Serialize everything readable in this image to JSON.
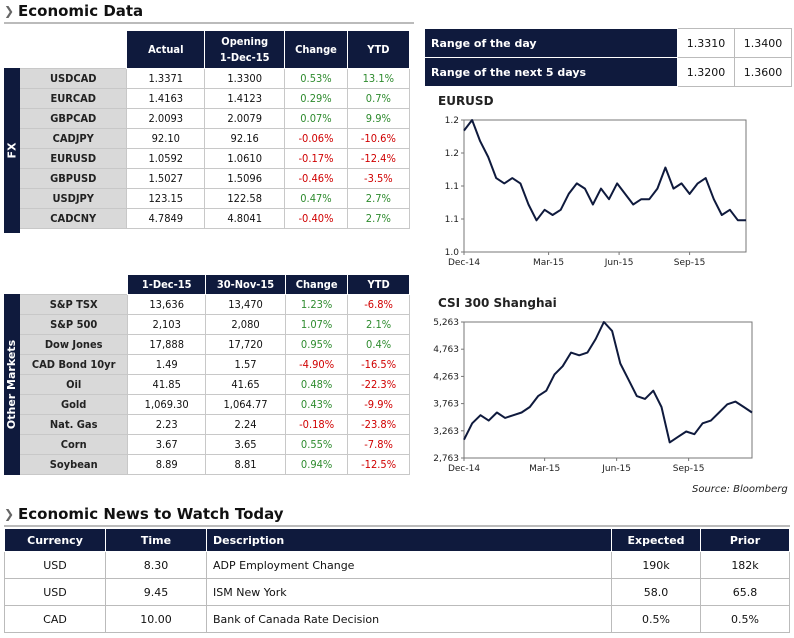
{
  "header": {
    "title": "Economic Data"
  },
  "fx": {
    "side_label": "FX",
    "columns": [
      "Actual",
      "Opening\n1-Dec-15",
      "Change",
      "YTD"
    ],
    "col_actual": "Actual",
    "col_opening": "Opening",
    "col_opening_date": "1-Dec-15",
    "col_change": "Change",
    "col_ytd": "YTD",
    "rows": [
      {
        "name": "USDCAD",
        "actual": "1.3371",
        "opening": "1.3300",
        "change": "0.53%",
        "ytd": "13.1%"
      },
      {
        "name": "EURCAD",
        "actual": "1.4163",
        "opening": "1.4123",
        "change": "0.29%",
        "ytd": "0.7%"
      },
      {
        "name": "GBPCAD",
        "actual": "2.0093",
        "opening": "2.0079",
        "change": "0.07%",
        "ytd": "9.9%"
      },
      {
        "name": "CADJPY",
        "actual": "92.10",
        "opening": "92.16",
        "change": "-0.06%",
        "ytd": "-10.6%"
      },
      {
        "name": "EURUSD",
        "actual": "1.0592",
        "opening": "1.0610",
        "change": "-0.17%",
        "ytd": "-12.4%"
      },
      {
        "name": "GBPUSD",
        "actual": "1.5027",
        "opening": "1.5096",
        "change": "-0.46%",
        "ytd": "-3.5%"
      },
      {
        "name": "USDJPY",
        "actual": "123.15",
        "opening": "122.58",
        "change": "0.47%",
        "ytd": "2.7%"
      },
      {
        "name": "CADCNY",
        "actual": "4.7849",
        "opening": "4.8041",
        "change": "-0.40%",
        "ytd": "2.7%"
      }
    ]
  },
  "range": {
    "rows": [
      {
        "label": "Range of the day",
        "low": "1.3310",
        "high": "1.3400"
      },
      {
        "label": "Range of the next 5 days",
        "low": "1.3200",
        "high": "1.3600"
      }
    ]
  },
  "markets": {
    "side_label": "Other Markets",
    "col_1": "1-Dec-15",
    "col_2": "30-Nov-15",
    "col_change": "Change",
    "col_ytd": "YTD",
    "rows": [
      {
        "name": "S&P TSX",
        "v1": "13,636",
        "v2": "13,470",
        "change": "1.23%",
        "ytd": "-6.8%"
      },
      {
        "name": "S&P 500",
        "v1": "2,103",
        "v2": "2,080",
        "change": "1.07%",
        "ytd": "2.1%"
      },
      {
        "name": "Dow Jones",
        "v1": "17,888",
        "v2": "17,720",
        "change": "0.95%",
        "ytd": "0.4%"
      },
      {
        "name": "CAD Bond 10yr",
        "v1": "1.49",
        "v2": "1.57",
        "change": "-4.90%",
        "ytd": "-16.5%"
      },
      {
        "name": "Oil",
        "v1": "41.85",
        "v2": "41.65",
        "change": "0.48%",
        "ytd": "-22.3%"
      },
      {
        "name": "Gold",
        "v1": "1,069.30",
        "v2": "1,064.77",
        "change": "0.43%",
        "ytd": "-9.9%"
      },
      {
        "name": "Nat. Gas",
        "v1": "2.23",
        "v2": "2.24",
        "change": "-0.18%",
        "ytd": "-23.8%"
      },
      {
        "name": "Corn",
        "v1": "3.67",
        "v2": "3.65",
        "change": "0.55%",
        "ytd": "-7.8%"
      },
      {
        "name": "Soybean",
        "v1": "8.89",
        "v2": "8.81",
        "change": "0.94%",
        "ytd": "-12.5%"
      }
    ]
  },
  "chart_data": [
    {
      "type": "line",
      "title": "EURUSD",
      "xlabel": "",
      "ylabel": "",
      "x_ticks": [
        "Dec-14",
        "Mar-15",
        "Jun-15",
        "Sep-15"
      ],
      "y_ticks": [
        "1.2",
        "1.2",
        "1.1",
        "1.1",
        "1.0"
      ],
      "ylim": [
        1.0,
        1.25
      ],
      "x": [
        "Dec-14",
        "Dec-14",
        "Jan-15",
        "Jan-15",
        "Jan-15",
        "Feb-15",
        "Feb-15",
        "Feb-15",
        "Mar-15",
        "Mar-15",
        "Mar-15",
        "Apr-15",
        "Apr-15",
        "Apr-15",
        "May-15",
        "May-15",
        "May-15",
        "Jun-15",
        "Jun-15",
        "Jun-15",
        "Jul-15",
        "Jul-15",
        "Jul-15",
        "Aug-15",
        "Aug-15",
        "Aug-15",
        "Sep-15",
        "Sep-15",
        "Sep-15",
        "Oct-15",
        "Oct-15",
        "Oct-15",
        "Nov-15",
        "Nov-15",
        "Nov-15",
        "Dec-15"
      ],
      "values": [
        1.23,
        1.25,
        1.21,
        1.18,
        1.14,
        1.13,
        1.14,
        1.13,
        1.09,
        1.06,
        1.08,
        1.07,
        1.08,
        1.11,
        1.13,
        1.12,
        1.09,
        1.12,
        1.1,
        1.13,
        1.11,
        1.09,
        1.1,
        1.1,
        1.12,
        1.16,
        1.12,
        1.13,
        1.11,
        1.13,
        1.14,
        1.1,
        1.07,
        1.08,
        1.06,
        1.06
      ],
      "grid": false
    },
    {
      "type": "line",
      "title": "CSI 300 Shanghai",
      "xlabel": "",
      "ylabel": "",
      "x_ticks": [
        "Dec-14",
        "Mar-15",
        "Jun-15",
        "Sep-15"
      ],
      "y_ticks": [
        "5,263",
        "4,763",
        "4,263",
        "3,763",
        "3,263",
        "2,763"
      ],
      "ylim": [
        2763,
        5263
      ],
      "x": [
        "Dec-14",
        "Dec-14",
        "Jan-15",
        "Jan-15",
        "Jan-15",
        "Feb-15",
        "Feb-15",
        "Feb-15",
        "Mar-15",
        "Mar-15",
        "Mar-15",
        "Apr-15",
        "Apr-15",
        "Apr-15",
        "May-15",
        "May-15",
        "May-15",
        "Jun-15",
        "Jun-15",
        "Jun-15",
        "Jul-15",
        "Jul-15",
        "Jul-15",
        "Aug-15",
        "Aug-15",
        "Aug-15",
        "Sep-15",
        "Sep-15",
        "Sep-15",
        "Oct-15",
        "Oct-15",
        "Oct-15",
        "Nov-15",
        "Nov-15",
        "Nov-15",
        "Dec-15"
      ],
      "values": [
        3100,
        3400,
        3550,
        3450,
        3600,
        3500,
        3550,
        3600,
        3700,
        3900,
        4000,
        4300,
        4450,
        4700,
        4650,
        4700,
        4950,
        5300,
        5100,
        4500,
        4200,
        3900,
        3850,
        4000,
        3700,
        3050,
        3150,
        3250,
        3200,
        3400,
        3450,
        3600,
        3750,
        3800,
        3700,
        3600
      ],
      "grid": false
    }
  ],
  "source": "Source: Bloomberg",
  "news": {
    "title": "Economic News to Watch Today",
    "col_currency": "Currency",
    "col_time": "Time",
    "col_description": "Description",
    "col_expected": "Expected",
    "col_prior": "Prior",
    "rows": [
      {
        "currency": "USD",
        "time": "8.30",
        "description": "ADP Employment Change",
        "expected": "190k",
        "prior": "182k"
      },
      {
        "currency": "USD",
        "time": "9.45",
        "description": "ISM New York",
        "expected": "58.0",
        "prior": "65.8"
      },
      {
        "currency": "CAD",
        "time": "10.00",
        "description": "Bank of Canada Rate Decision",
        "expected": "0.5%",
        "prior": "0.5%"
      }
    ]
  },
  "colors": {
    "navy": "#0f1a3d",
    "positive": "#2e8b2e",
    "negative": "#d00000",
    "label_bg": "#d9d9d9"
  }
}
